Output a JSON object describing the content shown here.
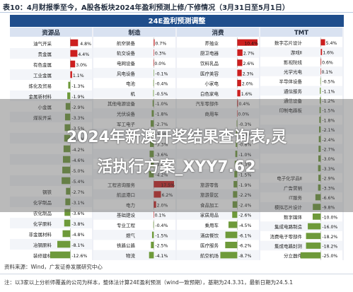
{
  "title": "表10：4月财报季至今，A股各板块2024年盈利预测上修/下修情况（3月31日至5月1日）",
  "chart_data": {
    "type": "bar",
    "title": "24E盈利预测调整",
    "groups": [
      {
        "name": "资源品",
        "items": [
          {
            "label": "油气开采",
            "value": 4.8
          },
          {
            "label": "贵金属",
            "value": 4.4
          },
          {
            "label": "有色金属",
            "value": 3.0
          },
          {
            "label": "工业金属",
            "value": 1.1
          },
          {
            "label": "炼化及贸易",
            "value": -1.3
          },
          {
            "label": "金属新材料",
            "value": -1.9
          },
          {
            "label": "小金属",
            "value": -2.9
          },
          {
            "label": "煤炭开采",
            "value": -3.3
          },
          {
            "label": "",
            "value": -3.5
          },
          {
            "label": "",
            "value": -3.8
          },
          {
            "label": "",
            "value": -4.2
          },
          {
            "label": "",
            "value": -4.6
          },
          {
            "label": "",
            "value": -5.0
          },
          {
            "label": "",
            "value": -5.4
          },
          {
            "label": "钢铁",
            "value": -2.7
          },
          {
            "label": "化学制品",
            "value": -3.1
          },
          {
            "label": "农化制品",
            "value": -3.6
          },
          {
            "label": "化学原料",
            "value": -3.8
          },
          {
            "label": "非金属材料",
            "value": -4.8
          },
          {
            "label": "冶钢原料",
            "value": -8.1
          },
          {
            "label": "装修建材",
            "value": -12.6
          }
        ]
      },
      {
        "name": "制造",
        "items": [
          {
            "label": "航空装备",
            "value": 0.7
          },
          {
            "label": "轨交设备",
            "value": 0.3
          },
          {
            "label": "电网设备",
            "value": 0.0
          },
          {
            "label": "风电设备",
            "value": -0.1
          },
          {
            "label": "电池",
            "value": -0.4
          },
          {
            "label": "机",
            "value": -0.5
          },
          {
            "label": "其他电源设备",
            "value": -1.0
          },
          {
            "label": "光伏设备",
            "value": -1.8
          },
          {
            "label": "军工电子",
            "value": -2.7
          },
          {
            "label": "",
            "value": -3.0
          },
          {
            "label": "",
            "value": -3.3
          },
          {
            "label": "",
            "value": -3.6
          },
          {
            "label": "",
            "value": -3.9
          },
          {
            "label": "",
            "value": -4.2
          },
          {
            "label": "工程咨询服务",
            "value": 17.5
          },
          {
            "label": "航运港口",
            "value": 6.2
          },
          {
            "label": "电力",
            "value": 2.0
          },
          {
            "label": "基础建设",
            "value": 0.1
          },
          {
            "label": "专业工程",
            "value": -0.4
          },
          {
            "label": "燃气",
            "value": -1.5
          },
          {
            "label": "铁路公路",
            "value": -2.5
          },
          {
            "label": "物流",
            "value": -4.1
          }
        ]
      },
      {
        "name": "消费",
        "items": [
          {
            "label": "养殖业",
            "value": 10.4
          },
          {
            "label": "厨卫电器",
            "value": 2.7
          },
          {
            "label": "饮料乳品",
            "value": 2.6
          },
          {
            "label": "医疗美容",
            "value": 2.3
          },
          {
            "label": "小家电",
            "value": 2.0
          },
          {
            "label": "白色家电",
            "value": 1.6
          },
          {
            "label": "汽车零部件",
            "value": 0.4
          },
          {
            "label": "商用车",
            "value": 0.0
          },
          {
            "label": "",
            "value": -0.3
          },
          {
            "label": "",
            "value": -0.6
          },
          {
            "label": "",
            "value": -0.8
          },
          {
            "label": "",
            "value": -1.0
          },
          {
            "label": "",
            "value": -1.3
          },
          {
            "label": "",
            "value": -1.5
          },
          {
            "label": "旅游零售",
            "value": -1.9
          },
          {
            "label": "旅游景区",
            "value": -2.2
          },
          {
            "label": "食品加工",
            "value": -2.4
          },
          {
            "label": "家居用品",
            "value": -2.6
          },
          {
            "label": "乘用车",
            "value": -4.5
          },
          {
            "label": "酒店餐饮",
            "value": -6.1
          },
          {
            "label": "医疗服务",
            "value": -6.2
          },
          {
            "label": "航空机场",
            "value": -8.7
          }
        ]
      },
      {
        "name": "TMT",
        "items": [
          {
            "label": "数字芯片设计",
            "value": 5.4
          },
          {
            "label": "游戏Ⅱ",
            "value": 1.6
          },
          {
            "label": "影视院线",
            "value": 0.6
          },
          {
            "label": "光学光电",
            "value": 0.1
          },
          {
            "label": "半导体设备",
            "value": -0.5
          },
          {
            "label": "通信服务",
            "value": -1.1
          },
          {
            "label": "通信设备",
            "value": -1.2
          },
          {
            "label": "印制电路板",
            "value": -1.5
          },
          {
            "label": "",
            "value": -1.8
          },
          {
            "label": "",
            "value": -2.1
          },
          {
            "label": "",
            "value": -2.4
          },
          {
            "label": "",
            "value": -2.7
          },
          {
            "label": "",
            "value": -3.0
          },
          {
            "label": "",
            "value": -3.3
          },
          {
            "label": "电子化学品Ⅱ",
            "value": -2.9
          },
          {
            "label": "广告营销",
            "value": -3.3
          },
          {
            "label": "IT服务",
            "value": -6.6
          },
          {
            "label": "模拟芯片设计",
            "value": -9.8
          },
          {
            "label": "数字媒体",
            "value": -10.0
          },
          {
            "label": "集成电路制造",
            "value": -16.0
          },
          {
            "label": "消费电子零部件",
            "value": -18.2
          },
          {
            "label": "集成电路封测",
            "value": -18.2
          },
          {
            "label": "分立器件",
            "value": -25.0
          }
        ]
      }
    ]
  },
  "overlay": {
    "line1": "2024年新澳开奖结果查询表,灵",
    "line2": "活执行方案_XYY7.62"
  },
  "footer": {
    "source": "资料来源：Wind，广发证券发展研究中心",
    "note": "注：以3家以上分析师覆盖的公司为样本，整体法计算24E盈利预测（wind一致预期），基期为24.3.31，最新日期为24.5.1"
  },
  "colors": {
    "positive": "#cc1f1f",
    "negative": "#6e9a3a",
    "header_bg": "#1f4e8c",
    "group_bg": "#d9e2f1"
  }
}
